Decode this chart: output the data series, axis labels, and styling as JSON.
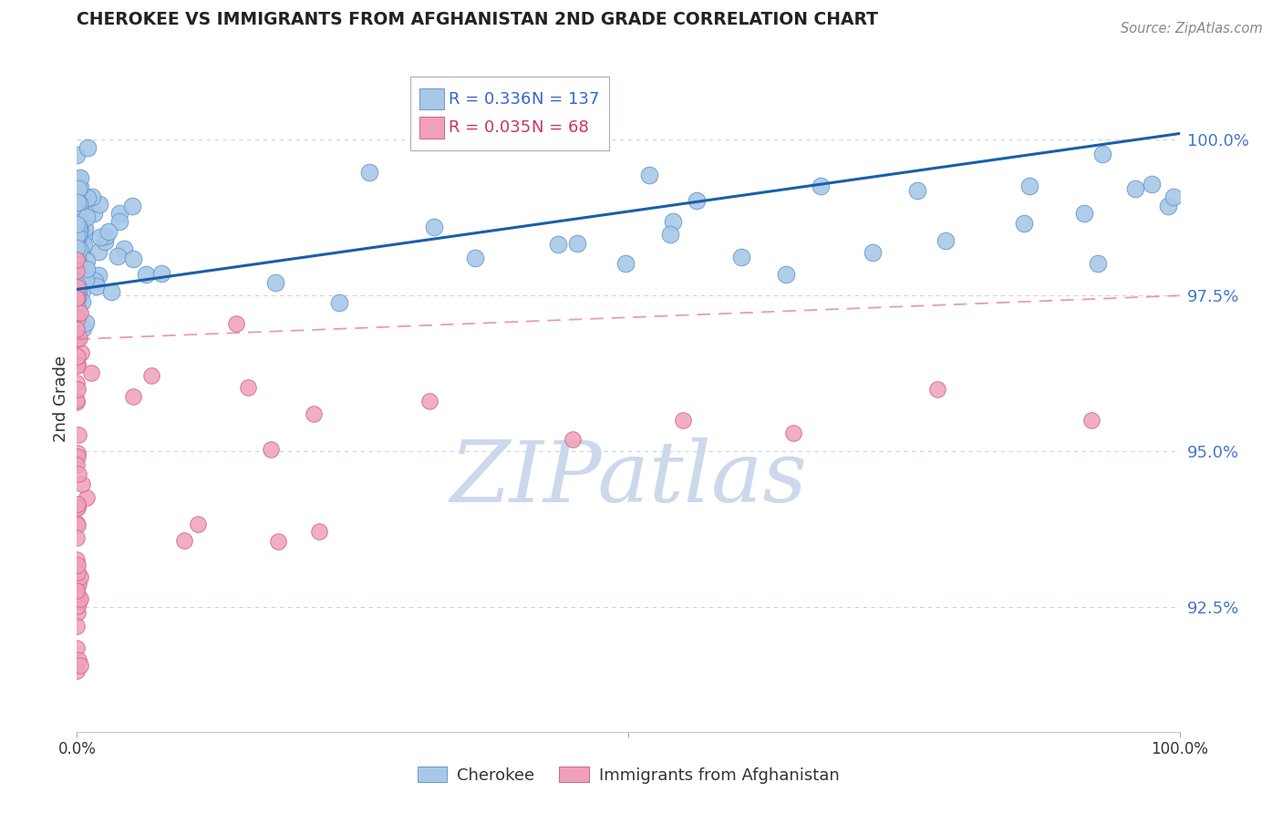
{
  "title": "CHEROKEE VS IMMIGRANTS FROM AFGHANISTAN 2ND GRADE CORRELATION CHART",
  "source_text": "Source: ZipAtlas.com",
  "ylabel": "2nd Grade",
  "y_tick_labels": [
    "92.5%",
    "95.0%",
    "97.5%",
    "100.0%"
  ],
  "y_tick_values": [
    0.925,
    0.95,
    0.975,
    1.0
  ],
  "x_min": 0.0,
  "x_max": 1.0,
  "y_min": 0.905,
  "y_max": 1.012,
  "legend_r1": "R = 0.336",
  "legend_n1": "N = 137",
  "legend_r2": "R = 0.035",
  "legend_n2": "N = 68",
  "blue_color": "#a8c8e8",
  "blue_edge": "#6699cc",
  "pink_color": "#f0a0b8",
  "pink_edge": "#cc6688",
  "trend_blue": "#1a5fa8",
  "trend_pink": "#e07090",
  "watermark": "ZIPatlas",
  "watermark_color": "#ccd8ec",
  "background": "#ffffff",
  "grid_color": "#c8d4e4",
  "blue_r": 0.336,
  "blue_n": 137,
  "pink_r": 0.035,
  "pink_n": 68,
  "blue_trend_y0": 0.976,
  "blue_trend_y1": 1.001,
  "pink_trend_y0": 0.968,
  "pink_trend_y1": 0.975
}
